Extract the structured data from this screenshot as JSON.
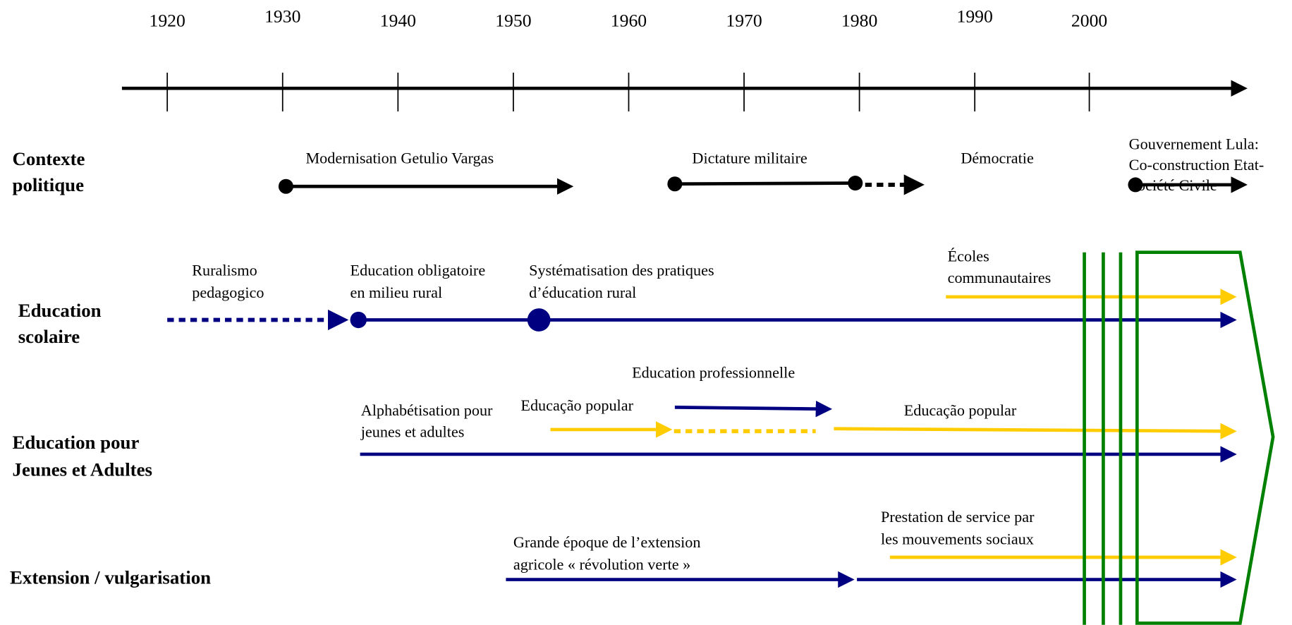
{
  "timeline": {
    "years": [
      "1920",
      "1930",
      "1940",
      "1950",
      "1960",
      "1970",
      "1980",
      "1990",
      "2000"
    ]
  },
  "rows": [
    {
      "title": [
        "Contexte",
        "politique"
      ],
      "items": [
        [
          "Modernisation Getulio Vargas"
        ],
        [
          "Dictature militaire"
        ],
        [
          "Démocratie"
        ],
        [
          "Gouvernement Lula:",
          "Co-construction Etat-",
          "Société Civile"
        ]
      ]
    },
    {
      "title": [
        "Education",
        "scolaire"
      ],
      "items": [
        [
          "Ruralismo",
          "pedagogico"
        ],
        [
          "Education obligatoire",
          "en milieu rural"
        ],
        [
          "Systématisation des pratiques",
          "d’éducation rural"
        ],
        [
          "Écoles",
          "communautaires"
        ]
      ]
    },
    {
      "title": [
        "Education pour",
        "Jeunes et Adultes"
      ],
      "items": [
        [
          "Education professionnelle"
        ],
        [
          "Alphabétisation pour",
          "jeunes et adultes"
        ],
        [
          "Educação popular"
        ],
        [
          "Educação popular"
        ]
      ]
    },
    {
      "title": [
        "Extension / vulgarisation"
      ],
      "items": [
        [
          "Grande époque de l’extension",
          "agricole « révolution verte »"
        ],
        [
          "Prestation de service par",
          "les mouvements sociaux"
        ]
      ]
    }
  ]
}
